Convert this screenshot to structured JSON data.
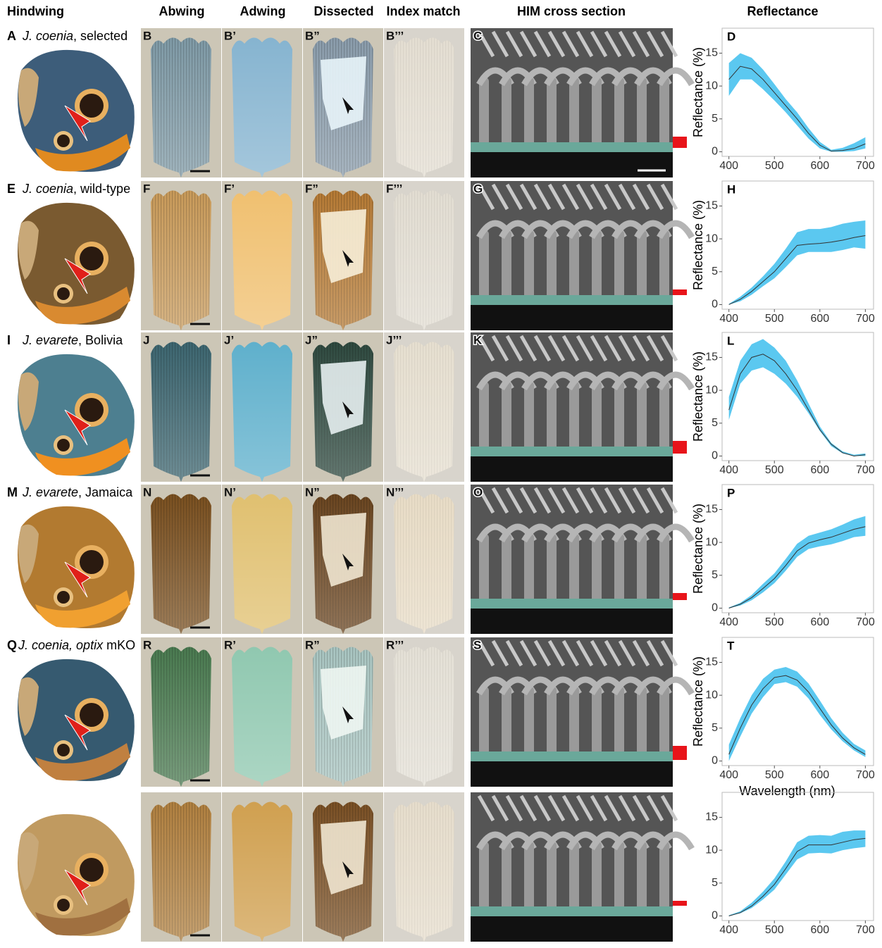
{
  "headers": [
    "Hindwing",
    "Abwing",
    "Adwing",
    "Dissected",
    "Index match",
    "HIM cross section",
    "Reflectance"
  ],
  "rows": [
    {
      "letter": "A",
      "name": [
        {
          "text": "J. coenia",
          "italic": true
        },
        {
          "text": ", selected",
          "italic": false
        }
      ],
      "panels": [
        "B",
        "B’",
        "B”",
        "B’’’",
        "C"
      ]
    },
    {
      "letter": "E",
      "name": [
        {
          "text": "J. coenia",
          "italic": true
        },
        {
          "text": ", wild-type",
          "italic": false
        }
      ],
      "panels": [
        "F",
        "F’",
        "F”",
        "F’’’",
        "G"
      ]
    },
    {
      "letter": "I",
      "name": [
        {
          "text": "J. evarete",
          "italic": true
        },
        {
          "text": ", Bolivia",
          "italic": false
        }
      ],
      "panels": [
        "J",
        "J’",
        "J”",
        "J’’’",
        "K"
      ]
    },
    {
      "letter": "M",
      "name": [
        {
          "text": "J. evarete",
          "italic": true
        },
        {
          "text": ", Jamaica",
          "italic": false
        }
      ],
      "panels": [
        "N",
        "N’",
        "N”",
        "N’’’",
        "O"
      ]
    },
    {
      "letter": "Q",
      "name": [
        {
          "text": "J. coenia, optix",
          "italic": true
        },
        {
          "text": " mKO",
          "italic": false
        }
      ],
      "panels": [
        "R",
        "R’",
        "R”",
        "R’’’",
        "S"
      ]
    }
  ],
  "chart_data": [
    {
      "type": "line",
      "panel": "D",
      "ylabel": "Reflectance (%)",
      "color": "#5bc8f0",
      "x": [
        400,
        425,
        450,
        475,
        500,
        525,
        550,
        575,
        600,
        625,
        650,
        675,
        700
      ],
      "values": [
        11,
        13,
        12.6,
        11,
        9,
        7,
        5,
        2.8,
        1,
        0.1,
        0.2,
        0.5,
        1.2
      ],
      "lower": [
        8.5,
        11,
        11,
        9.5,
        7.8,
        6,
        4,
        2,
        0.5,
        0,
        0,
        0.1,
        0.5
      ],
      "upper": [
        13.5,
        15,
        14.3,
        12.5,
        10.3,
        8,
        6,
        3.6,
        1.5,
        0.3,
        0.6,
        1.3,
        2.2
      ],
      "xlim": [
        385,
        718
      ],
      "ylim": [
        -0.7,
        18.8
      ],
      "xticks": [
        400,
        500,
        600,
        700
      ],
      "yticks": [
        0,
        5,
        10,
        15
      ]
    },
    {
      "type": "line",
      "panel": "H",
      "ylabel": "Reflectance (%)",
      "color": "#5bc8f0",
      "x": [
        400,
        425,
        450,
        475,
        500,
        525,
        550,
        575,
        600,
        625,
        650,
        675,
        700
      ],
      "values": [
        0,
        0.8,
        2,
        3.5,
        5,
        7,
        9,
        9.2,
        9.3,
        9.5,
        9.8,
        10.2,
        10.5
      ],
      "lower": [
        0,
        0.5,
        1.5,
        2.8,
        4,
        5.7,
        7.5,
        8,
        8,
        8,
        8.3,
        8.7,
        8.5
      ],
      "upper": [
        0.1,
        1.2,
        2.6,
        4.3,
        6.2,
        8.5,
        11,
        11.5,
        11.5,
        11.8,
        12.3,
        12.6,
        12.8
      ],
      "xlim": [
        385,
        718
      ],
      "ylim": [
        -0.7,
        18.8
      ],
      "xticks": [
        400,
        500,
        600,
        700
      ],
      "yticks": [
        0,
        5,
        10,
        15
      ]
    },
    {
      "type": "line",
      "panel": "L",
      "ylabel": "Reflectance (%)",
      "color": "#5bc8f0",
      "x": [
        400,
        425,
        450,
        475,
        500,
        525,
        550,
        575,
        600,
        625,
        650,
        675,
        700
      ],
      "values": [
        7,
        12.5,
        15,
        15.5,
        14.5,
        12.5,
        10,
        7,
        4,
        1.8,
        0.5,
        0,
        0.2
      ],
      "lower": [
        5.5,
        11,
        13,
        13.5,
        12.5,
        11,
        9,
        6.5,
        3.8,
        1.5,
        0.4,
        0,
        0
      ],
      "upper": [
        9,
        14.5,
        17,
        17.8,
        16.5,
        14.5,
        11.5,
        8,
        4.5,
        2,
        0.7,
        0.2,
        0.4
      ],
      "xlim": [
        385,
        718
      ],
      "ylim": [
        -0.7,
        18.8
      ],
      "xticks": [
        400,
        500,
        600,
        700
      ],
      "yticks": [
        0,
        5,
        10,
        15
      ]
    },
    {
      "type": "line",
      "panel": "P",
      "ylabel": "Reflectance (%)",
      "color": "#5bc8f0",
      "x": [
        400,
        425,
        450,
        475,
        500,
        525,
        550,
        575,
        600,
        625,
        650,
        675,
        700
      ],
      "values": [
        0,
        0.6,
        1.6,
        3,
        4.5,
        6.5,
        8.7,
        9.9,
        10.4,
        10.8,
        11.4,
        12,
        12.4
      ],
      "lower": [
        0,
        0.4,
        1.2,
        2.4,
        3.8,
        5.7,
        7.8,
        9,
        9.4,
        9.7,
        10.2,
        10.8,
        11
      ],
      "upper": [
        0.1,
        0.8,
        2,
        3.7,
        5.3,
        7.5,
        9.8,
        11,
        11.5,
        12,
        12.7,
        13.5,
        14
      ],
      "xlim": [
        385,
        718
      ],
      "ylim": [
        -0.7,
        18.8
      ],
      "xticks": [
        400,
        500,
        600,
        700
      ],
      "yticks": [
        0,
        5,
        10,
        15
      ]
    },
    {
      "type": "line",
      "panel": "T",
      "ylabel": "Reflectance (%)",
      "xlabel": "Wavelength (nm)",
      "color": "#5bc8f0",
      "x": [
        400,
        425,
        450,
        475,
        500,
        525,
        550,
        575,
        600,
        625,
        650,
        675,
        700
      ],
      "values": [
        1,
        5,
        8.5,
        11,
        12.7,
        13,
        12.3,
        10.5,
        8,
        5.5,
        3.5,
        2,
        1
      ],
      "lower": [
        0,
        3.7,
        7.2,
        9.7,
        11.7,
        12,
        11.3,
        9.5,
        7,
        4.8,
        3,
        1.6,
        0.6
      ],
      "upper": [
        2.5,
        6.5,
        10,
        12.5,
        13.9,
        14.3,
        13.6,
        11.8,
        9.2,
        6.5,
        4.3,
        2.6,
        1.6
      ],
      "xlim": [
        385,
        718
      ],
      "ylim": [
        -0.7,
        18.8
      ],
      "xticks": [
        400,
        500,
        600,
        700
      ],
      "yticks": [
        0,
        5,
        10,
        15
      ]
    },
    {
      "type": "line",
      "color": "#5bc8f0",
      "x": [
        400,
        425,
        450,
        475,
        500,
        525,
        550,
        575,
        600,
        625,
        650,
        675,
        700
      ],
      "values": [
        0,
        0.5,
        1.5,
        3,
        4.8,
        7.2,
        9.8,
        10.8,
        10.8,
        10.8,
        11.2,
        11.6,
        11.8
      ],
      "lower": [
        0,
        0.4,
        1.2,
        2.5,
        4,
        6.3,
        8.6,
        9.5,
        9.6,
        9.5,
        10,
        10.3,
        10.5
      ],
      "upper": [
        0.1,
        0.7,
        2,
        3.7,
        5.7,
        8.3,
        11.2,
        12.2,
        12.3,
        12.2,
        12.8,
        13,
        13
      ],
      "xlim": [
        385,
        718
      ],
      "ylim": [
        -0.7,
        18.8
      ],
      "xticks": [
        400,
        500,
        600,
        700
      ],
      "yticks": [
        0,
        5,
        10,
        15
      ]
    }
  ]
}
